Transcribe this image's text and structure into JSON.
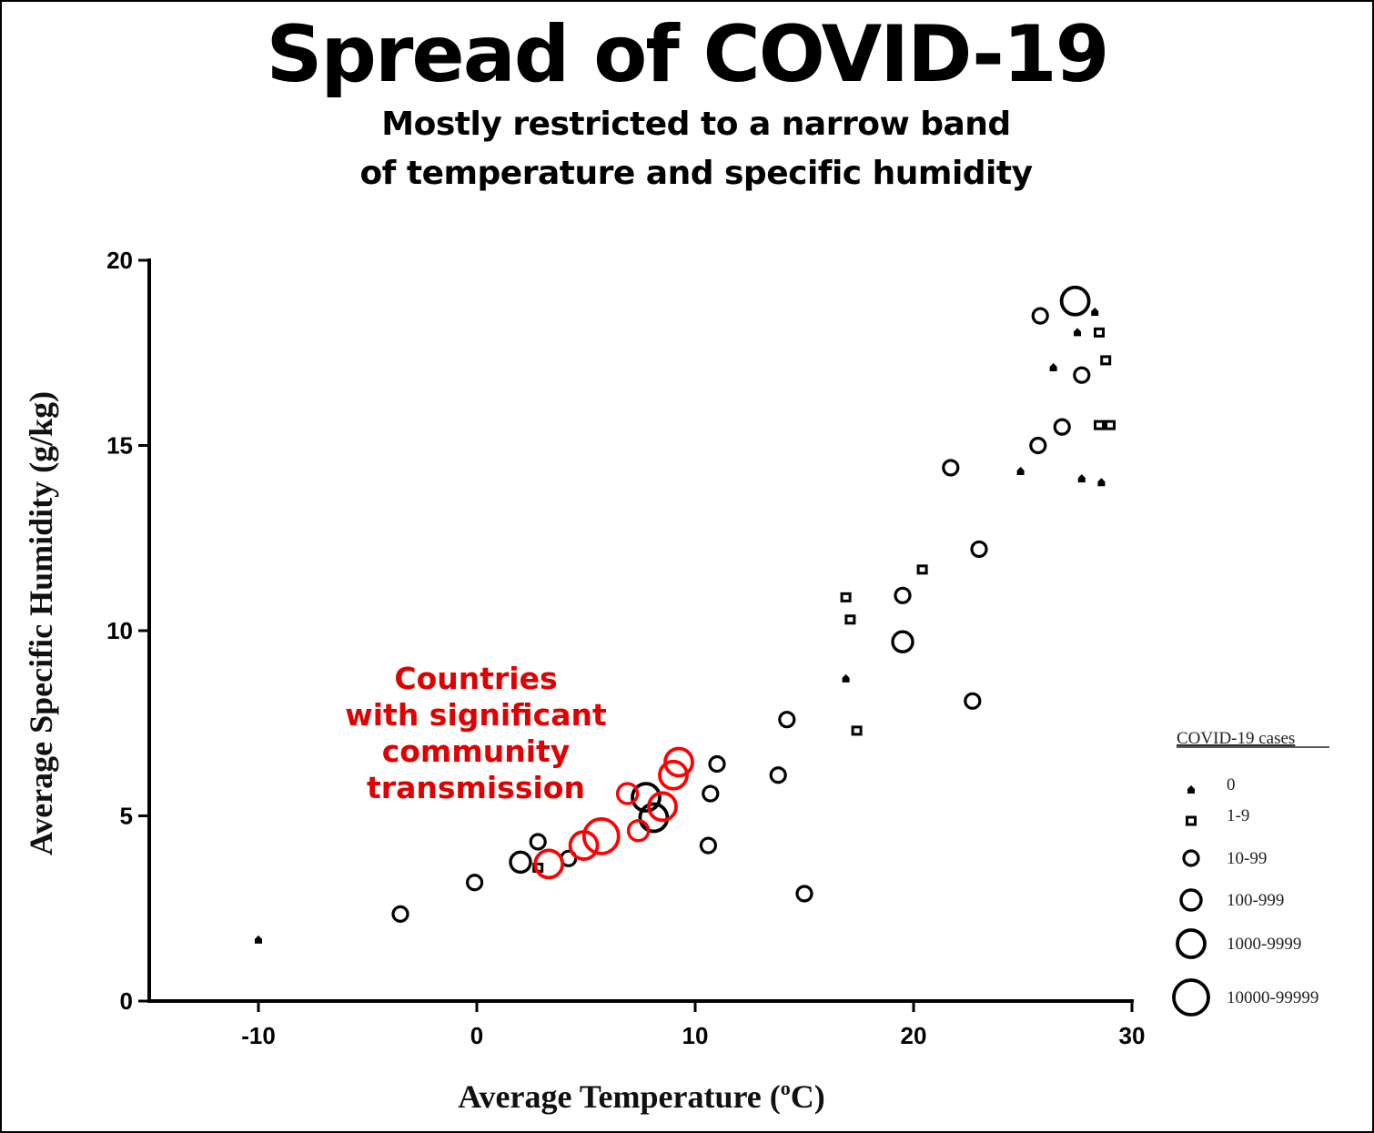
{
  "chart_data": {
    "type": "scatter",
    "title": "Spread of COVID-19",
    "subtitle": [
      "Mostly restricted to a narrow band",
      "of temperature and specific humidity"
    ],
    "xlabel": "Average Temperature (",
    "xlabel_sup": "o",
    "xlabel_end": "C)",
    "ylabel": "Average Specific Humidity (g/kg)",
    "xlim": [
      -15,
      30
    ],
    "ylim": [
      0,
      20
    ],
    "xticks": [
      -10,
      0,
      10,
      20,
      30
    ],
    "yticks": [
      0,
      5,
      10,
      15,
      20
    ],
    "grid": false,
    "legend": {
      "title": "COVID-19 cases",
      "placement": "right",
      "entries": [
        "0",
        "1-9",
        "10-99",
        "100-999",
        "1000-9999",
        "10000-99999"
      ]
    },
    "annotation": {
      "lines": [
        "Countries",
        "with significant",
        "community",
        "transmission"
      ],
      "color": "#e00000"
    },
    "colors": {
      "default": "#000000",
      "highlight": "#ff0000"
    },
    "series": [
      {
        "name": "0",
        "marker": "dot",
        "highlight": false,
        "points": [
          [
            -10.0,
            1.65
          ],
          [
            16.9,
            8.7
          ],
          [
            24.9,
            14.3
          ],
          [
            26.4,
            17.1
          ],
          [
            27.5,
            18.05
          ],
          [
            28.3,
            18.6
          ],
          [
            27.7,
            14.1
          ],
          [
            28.6,
            14.0
          ]
        ]
      },
      {
        "name": "1-9",
        "marker": "square",
        "highlight": false,
        "points": [
          [
            2.8,
            3.6
          ],
          [
            16.9,
            10.9
          ],
          [
            17.1,
            10.3
          ],
          [
            17.4,
            7.3
          ],
          [
            20.4,
            11.65
          ],
          [
            28.5,
            18.05
          ],
          [
            28.8,
            17.3
          ],
          [
            28.5,
            15.55
          ],
          [
            29.0,
            15.55
          ]
        ]
      },
      {
        "name": "10-99",
        "marker": "circle",
        "highlight": false,
        "points": [
          [
            -3.5,
            2.35
          ],
          [
            -0.1,
            3.2
          ],
          [
            2.8,
            4.3
          ],
          [
            4.2,
            3.85
          ],
          [
            11.0,
            6.4
          ],
          [
            10.7,
            5.6
          ],
          [
            10.6,
            4.2
          ],
          [
            14.2,
            7.6
          ],
          [
            13.8,
            6.1
          ],
          [
            15.0,
            2.9
          ],
          [
            19.5,
            10.95
          ],
          [
            21.7,
            14.4
          ],
          [
            23.0,
            12.2
          ],
          [
            22.7,
            8.1
          ],
          [
            25.8,
            18.5
          ],
          [
            25.7,
            15.0
          ],
          [
            26.8,
            15.5
          ],
          [
            27.7,
            16.9
          ]
        ]
      },
      {
        "name": "100-999",
        "marker": "circle",
        "highlight": false,
        "points": [
          [
            2.0,
            3.75
          ],
          [
            19.5,
            9.7
          ]
        ]
      },
      {
        "name": "1000-9999",
        "marker": "circle",
        "highlight": false,
        "points": [
          [
            27.4,
            18.9
          ],
          [
            7.75,
            5.5
          ],
          [
            8.1,
            4.95
          ]
        ]
      },
      {
        "name": "significant community transmission",
        "marker": "circle",
        "highlight": true,
        "points": [
          [
            3.3,
            3.7,
            "1000-9999"
          ],
          [
            4.9,
            4.2,
            "1000-9999"
          ],
          [
            5.7,
            4.45,
            "10000-99999"
          ],
          [
            7.4,
            4.6,
            "100-999"
          ],
          [
            6.9,
            5.6,
            "100-999"
          ],
          [
            8.5,
            5.25,
            "1000-9999"
          ],
          [
            9.0,
            6.1,
            "1000-9999"
          ],
          [
            9.25,
            6.45,
            "1000-9999"
          ]
        ]
      }
    ]
  }
}
